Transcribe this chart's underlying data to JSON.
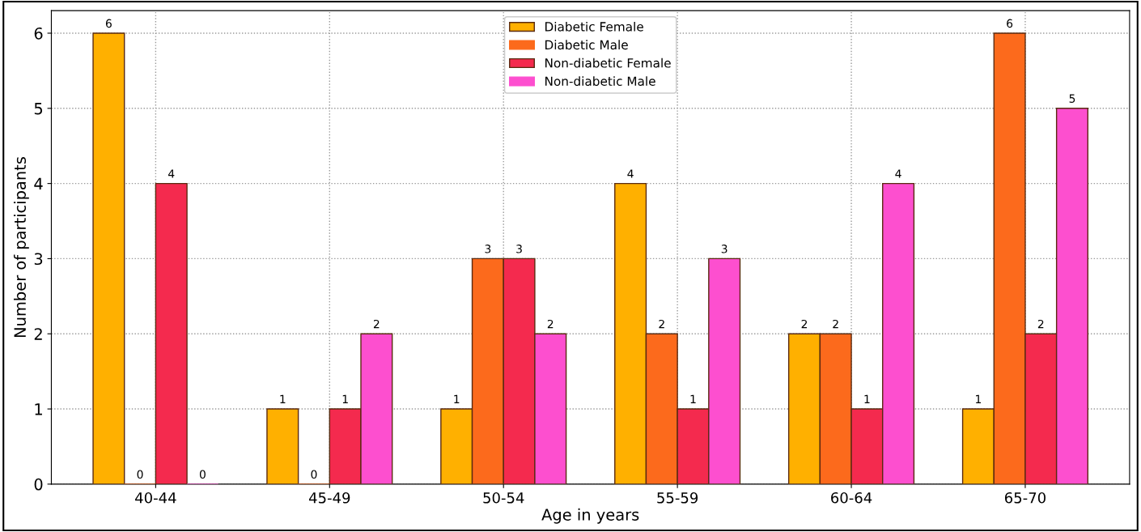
{
  "chart_data": {
    "type": "bar",
    "xlabel": "Age in years",
    "ylabel": "Number of participants",
    "categories": [
      "40-44",
      "45-49",
      "50-54",
      "55-59",
      "60-64",
      "65-70"
    ],
    "series": [
      {
        "name": "Diabetic Female",
        "color": "#ffb000",
        "values": [
          6,
          1,
          1,
          4,
          2,
          1
        ]
      },
      {
        "name": "Diabetic Male",
        "color": "#fc6a1c",
        "values": [
          0,
          0,
          3,
          2,
          2,
          6
        ]
      },
      {
        "name": "Non-diabetic Female",
        "color": "#f42a4e",
        "values": [
          4,
          1,
          3,
          1,
          1,
          2
        ]
      },
      {
        "name": "Non-diabetic Male",
        "color": "#fd4fcf",
        "values": [
          0,
          2,
          2,
          3,
          4,
          5
        ]
      }
    ],
    "ylim": [
      0,
      6.3
    ],
    "yticks": [
      0,
      1,
      2,
      3,
      4,
      5,
      6
    ],
    "grid": true,
    "legend": "top",
    "data_labels": true
  }
}
